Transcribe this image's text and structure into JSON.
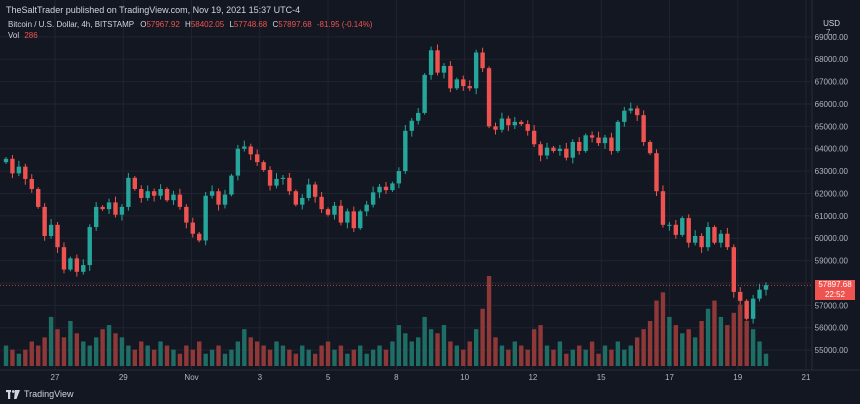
{
  "header": {
    "publisher": "TheSaltTrader published on TradingView.com, Nov 19, 2021 15:37 UTC-4"
  },
  "legend": {
    "symbol": "Bitcoin / U.S. Dollar, 4h, BITSTAMP",
    "o_label": "O",
    "o_value": "57967.92",
    "h_label": "H",
    "h_value": "58402.05",
    "l_label": "L",
    "l_value": "57748.68",
    "c_label": "C",
    "c_value": "57897.68",
    "change": "-81.95 (-0.14%)",
    "vol_label": "Vol",
    "vol_value": "286"
  },
  "axis": {
    "currency": "USD",
    "top_label": "7..."
  },
  "price_tag": {
    "price": "57897.68",
    "countdown": "22:52",
    "color": "#ef5350"
  },
  "footer": {
    "brand": "TradingView"
  },
  "colors": {
    "background": "#131722",
    "up": "#26a69a",
    "down": "#ef5350",
    "up_volume": "#1f6e66",
    "down_volume": "#8f3838",
    "grid": "#1f2431"
  },
  "chart_data": {
    "type": "candlestick",
    "symbol": "Bitcoin / U.S. Dollar",
    "interval": "4h",
    "exchange": "BITSTAMP",
    "x_tick_labels": [
      "27",
      "29",
      "Nov",
      "3",
      "5",
      "8",
      "10",
      "12",
      "15",
      "17",
      "19",
      "21"
    ],
    "y_tick_labels": [
      "55000.00",
      "56000.00",
      "57000.00",
      "58000.00",
      "59000.00",
      "60000.00",
      "61000.00",
      "62000.00",
      "63000.00",
      "64000.00",
      "65000.00",
      "66000.00",
      "67000.00",
      "68000.00",
      "69000.00"
    ],
    "ylim": [
      54200,
      70200
    ],
    "grid": true,
    "last_price": 57897.68,
    "closes": [
      63550,
      62900,
      63200,
      62650,
      62200,
      61400,
      60100,
      60600,
      59600,
      58600,
      59100,
      58500,
      58800,
      60500,
      61400,
      61300,
      61600,
      61050,
      61400,
      62700,
      62200,
      61800,
      62100,
      61900,
      62200,
      61700,
      61950,
      61400,
      60700,
      60200,
      59900,
      61900,
      62100,
      61500,
      61950,
      62800,
      64000,
      64100,
      63750,
      63400,
      63050,
      62350,
      62650,
      62700,
      62100,
      61500,
      61800,
      62400,
      61850,
      61300,
      61050,
      61450,
      60700,
      61200,
      60450,
      61200,
      61500,
      62050,
      62300,
      62150,
      62450,
      63000,
      64800,
      65250,
      65600,
      67300,
      68400,
      67400,
      67700,
      66700,
      67100,
      66800,
      66700,
      68300,
      67600,
      65000,
      64850,
      65350,
      65050,
      65200,
      65100,
      64800,
      64200,
      63700,
      64050,
      63900,
      64000,
      63600,
      64300,
      63900,
      64600,
      64500,
      64250,
      64500,
      63900,
      65200,
      65700,
      65800,
      65500,
      64300,
      63800,
      62100,
      60600,
      60600,
      60150,
      60900,
      59800,
      60100,
      59600,
      60500,
      59800,
      60200,
      59600,
      57600,
      57200,
      56400,
      57300,
      57700,
      57900
    ],
    "volumes": [
      5,
      4,
      3,
      4,
      6,
      5,
      7,
      12,
      9,
      7,
      11,
      8,
      6,
      5,
      7,
      9,
      10,
      8,
      7,
      5,
      4,
      6,
      5,
      4,
      6,
      5,
      4,
      3,
      5,
      4,
      6,
      3,
      4,
      5,
      3,
      4,
      6,
      9,
      7,
      6,
      5,
      4,
      6,
      5,
      4,
      3,
      5,
      4,
      3,
      5,
      6,
      4,
      5,
      3,
      4,
      5,
      3,
      4,
      5,
      4,
      6,
      10,
      8,
      6,
      7,
      12,
      9,
      8,
      10,
      6,
      5,
      4,
      6,
      9,
      14,
      22,
      7,
      5,
      4,
      6,
      5,
      4,
      9,
      10,
      5,
      4,
      6,
      3,
      4,
      5,
      4,
      6,
      3,
      5,
      4,
      6,
      4,
      5,
      7,
      9,
      11,
      16,
      18,
      12,
      10,
      8,
      9,
      7,
      11,
      14,
      16,
      12,
      10,
      13,
      15,
      11,
      9,
      6,
      3
    ]
  }
}
